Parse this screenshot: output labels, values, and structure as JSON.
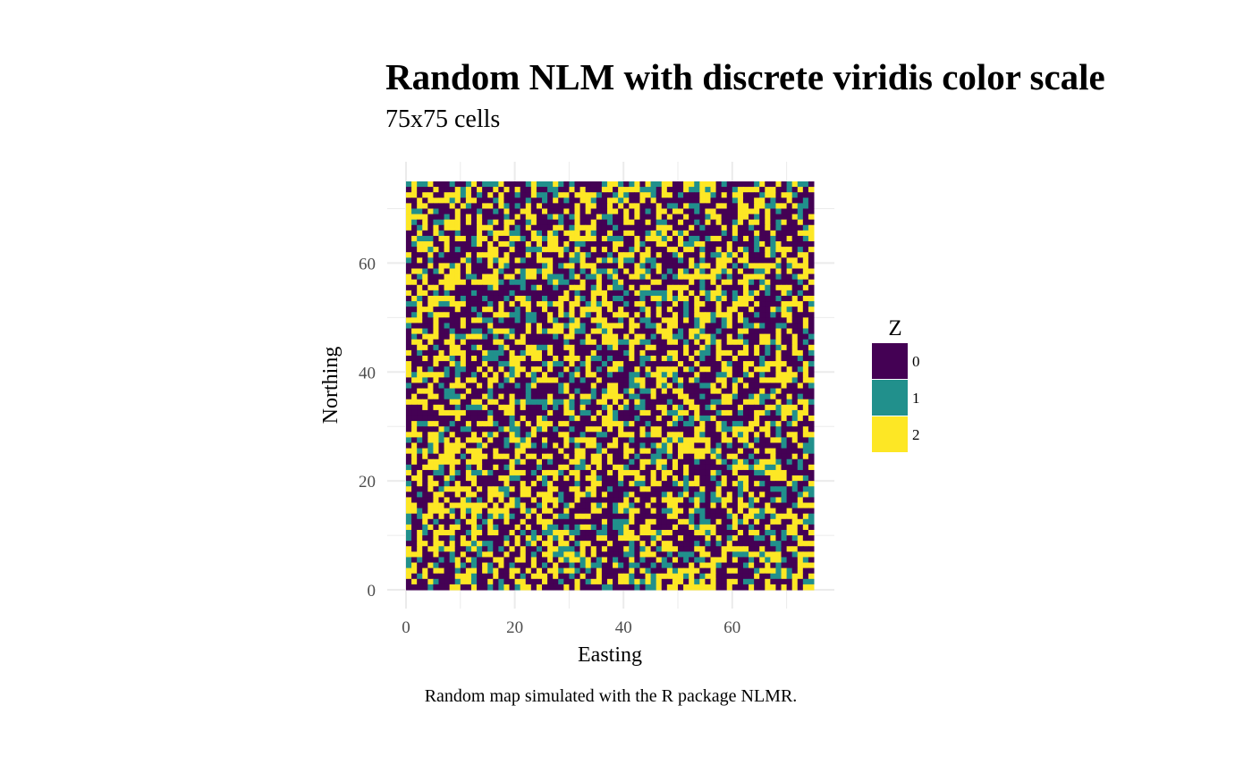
{
  "chart_data": {
    "type": "heatmap",
    "title": "Random NLM with discrete viridis color scale",
    "subtitle": "75x75 cells",
    "caption": "Random map simulated with the R package NLMR.",
    "xlabel": "Easting",
    "ylabel": "Northing",
    "xlim": [
      0,
      75
    ],
    "ylim": [
      0,
      75
    ],
    "x_ticks": [
      0,
      20,
      40,
      60
    ],
    "y_ticks": [
      0,
      20,
      40,
      60
    ],
    "grid": true,
    "legend": {
      "title": "Z",
      "position": "right",
      "entries": [
        {
          "label": "0",
          "color": "#440154"
        },
        {
          "label": "1",
          "color": "#21908C"
        },
        {
          "label": "2",
          "color": "#FDE725"
        }
      ]
    },
    "grid_size": [
      75,
      75
    ],
    "cell_classes": [
      0,
      1,
      2
    ],
    "class_proportions": [
      0.47,
      0.17,
      0.36
    ]
  }
}
